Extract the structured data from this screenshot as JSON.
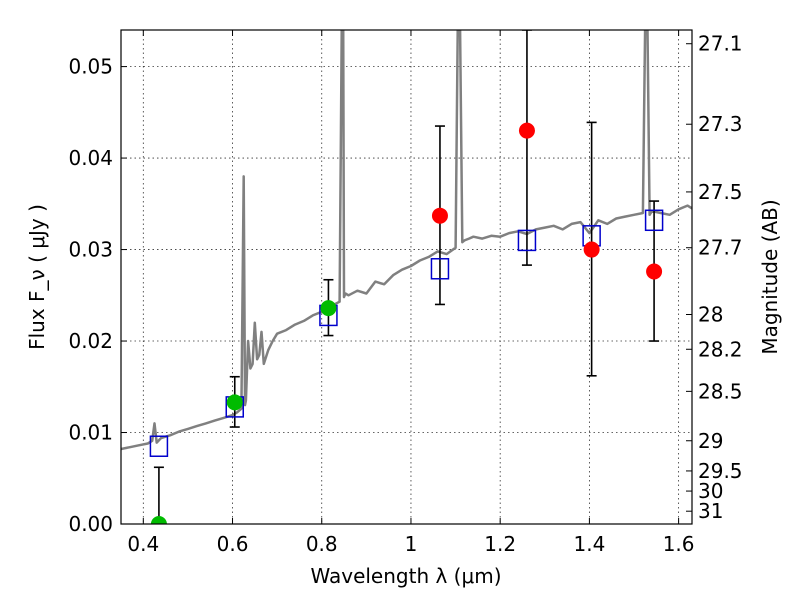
{
  "chart_data": {
    "type": "scatter",
    "xlabel": "Wavelength  λ (μm)",
    "ylabel": "Flux  F_ν  ( μJy )",
    "y2label": "Magnitude (AB)",
    "xlim": [
      0.35,
      1.63
    ],
    "ylim": [
      0.0,
      0.054
    ],
    "x_ticks": [
      0.4,
      0.6,
      0.8,
      1.0,
      1.2,
      1.4,
      1.6
    ],
    "x_tick_labels": [
      "0.4",
      "0.6",
      "0.8",
      "1",
      "1.2",
      "1.4",
      "1.6"
    ],
    "y_ticks": [
      0.0,
      0.01,
      0.02,
      0.03,
      0.04,
      0.05
    ],
    "y_tick_labels": [
      "0.00",
      "0.01",
      "0.02",
      "0.03",
      "0.04",
      "0.05"
    ],
    "y2_ticks": [
      {
        "label": "27.1",
        "flux": 0.0525
      },
      {
        "label": "27.3",
        "flux": 0.0437
      },
      {
        "label": "27.5",
        "flux": 0.0363
      },
      {
        "label": "27.7",
        "flux": 0.0302
      },
      {
        "label": "28",
        "flux": 0.0229
      },
      {
        "label": "28.2",
        "flux": 0.0191
      },
      {
        "label": "28.5",
        "flux": 0.0145
      },
      {
        "label": "29",
        "flux": 0.0091
      },
      {
        "label": "29.5",
        "flux": 0.0058
      },
      {
        "label": "30",
        "flux": 0.0036
      },
      {
        "label": "31",
        "flux": 0.0014
      }
    ],
    "grid": true,
    "colors": {
      "spectrum": "#808080",
      "model_box": "#0000cc",
      "red_point": "#ff0000",
      "green_point": "#00bb00",
      "errorbar": "#000000"
    },
    "series": [
      {
        "kind": "spectrum_line",
        "x": [
          0.35,
          0.37,
          0.39,
          0.41,
          0.42,
          0.425,
          0.43,
          0.44,
          0.46,
          0.48,
          0.5,
          0.52,
          0.54,
          0.56,
          0.58,
          0.6,
          0.61,
          0.62,
          0.625,
          0.628,
          0.63,
          0.635,
          0.64,
          0.645,
          0.65,
          0.655,
          0.66,
          0.665,
          0.67,
          0.68,
          0.69,
          0.7,
          0.72,
          0.74,
          0.76,
          0.78,
          0.8,
          0.82,
          0.84,
          0.845,
          0.848,
          0.85,
          0.853,
          0.86,
          0.88,
          0.9,
          0.92,
          0.94,
          0.96,
          0.98,
          1.0,
          1.02,
          1.04,
          1.06,
          1.08,
          1.1,
          1.105,
          1.11,
          1.115,
          1.12,
          1.13,
          1.14,
          1.16,
          1.18,
          1.2,
          1.22,
          1.24,
          1.26,
          1.28,
          1.3,
          1.32,
          1.34,
          1.36,
          1.38,
          1.4,
          1.42,
          1.44,
          1.46,
          1.48,
          1.5,
          1.52,
          1.525,
          1.53,
          1.535,
          1.54,
          1.56,
          1.58,
          1.6,
          1.62,
          1.63
        ],
        "y": [
          0.0082,
          0.0084,
          0.0086,
          0.0088,
          0.0091,
          0.011,
          0.0089,
          0.0094,
          0.0097,
          0.0101,
          0.0104,
          0.0107,
          0.011,
          0.0113,
          0.0116,
          0.0119,
          0.0122,
          0.0126,
          0.038,
          0.013,
          0.0135,
          0.02,
          0.017,
          0.0175,
          0.022,
          0.018,
          0.0185,
          0.021,
          0.0175,
          0.019,
          0.02,
          0.0208,
          0.0212,
          0.0218,
          0.0222,
          0.0228,
          0.0232,
          0.0238,
          0.0243,
          0.055,
          0.055,
          0.0248,
          0.0252,
          0.025,
          0.0255,
          0.0252,
          0.0265,
          0.0262,
          0.0272,
          0.0278,
          0.0282,
          0.0288,
          0.0292,
          0.0298,
          0.0295,
          0.0302,
          0.055,
          0.055,
          0.0308,
          0.031,
          0.0312,
          0.0314,
          0.0312,
          0.0315,
          0.0314,
          0.0318,
          0.032,
          0.0317,
          0.0322,
          0.0324,
          0.0326,
          0.0322,
          0.0328,
          0.033,
          0.0318,
          0.0332,
          0.0328,
          0.0334,
          0.0336,
          0.0338,
          0.034,
          0.055,
          0.055,
          0.0338,
          0.0342,
          0.034,
          0.0338,
          0.0344,
          0.0348,
          0.0345
        ]
      },
      {
        "kind": "model_boxes",
        "x": [
          0.435,
          0.605,
          0.815,
          1.065,
          1.26,
          1.405,
          1.545
        ],
        "y": [
          0.0085,
          0.0128,
          0.0228,
          0.0279,
          0.031,
          0.0315,
          0.0332
        ]
      },
      {
        "kind": "green_points",
        "x": [
          0.435,
          0.605,
          0.815
        ],
        "y": [
          0.0,
          0.0133,
          0.0236
        ],
        "err_low": [
          0.0,
          0.0027,
          0.003
        ],
        "err_high": [
          0.0062,
          0.0028,
          0.0031
        ]
      },
      {
        "kind": "red_points",
        "x": [
          1.065,
          1.26,
          1.405,
          1.545
        ],
        "y": [
          0.0337,
          0.043,
          0.03,
          0.0276
        ],
        "err_low": [
          0.0097,
          0.0147,
          0.0138,
          0.0076
        ],
        "err_high": [
          0.0098,
          0.011,
          0.0139,
          0.0077
        ]
      }
    ]
  }
}
